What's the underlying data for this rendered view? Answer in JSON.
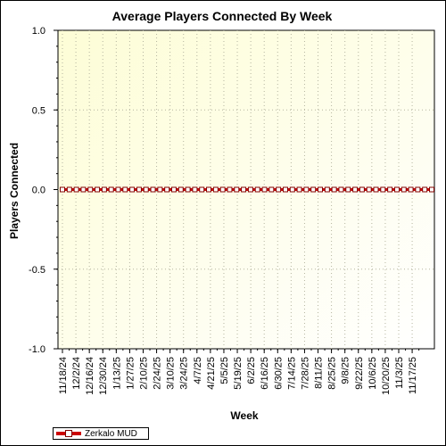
{
  "chart_data": {
    "type": "line",
    "title": "Average Players Connected By Week",
    "xlabel": "Week",
    "ylabel": "Players Connected",
    "ylim": [
      -1.0,
      1.0
    ],
    "yticks": [
      "1.0",
      "0.5",
      "0.0",
      "-0.5",
      "-1.0"
    ],
    "yticks_values": [
      1.0,
      0.5,
      0.0,
      -0.5,
      -1.0
    ],
    "x_tick_labels": [
      "11/18/24",
      "12/2/24",
      "12/16/24",
      "12/30/24",
      "1/13/25",
      "1/27/25",
      "2/10/25",
      "2/24/25",
      "3/10/25",
      "3/24/25",
      "4/7/25",
      "4/21/25",
      "5/5/25",
      "5/19/25",
      "6/2/25",
      "6/16/25",
      "6/30/25",
      "7/14/25",
      "7/28/25",
      "8/11/25",
      "8/25/25",
      "9/8/25",
      "9/22/25",
      "10/6/25",
      "10/20/25",
      "11/3/25",
      "11/17/25"
    ],
    "grid": true,
    "legend_position": "bottom-left",
    "series": [
      {
        "name": "Zerkalo MUD",
        "color": "#cc0000",
        "values": [
          0,
          0,
          0,
          0,
          0,
          0,
          0,
          0,
          0,
          0,
          0,
          0,
          0,
          0,
          0,
          0,
          0,
          0,
          0,
          0,
          0,
          0,
          0,
          0,
          0,
          0,
          0,
          0,
          0,
          0,
          0,
          0,
          0,
          0,
          0,
          0,
          0,
          0,
          0,
          0,
          0,
          0,
          0,
          0,
          0,
          0,
          0,
          0,
          0,
          0,
          0,
          0,
          0,
          0
        ]
      }
    ]
  }
}
